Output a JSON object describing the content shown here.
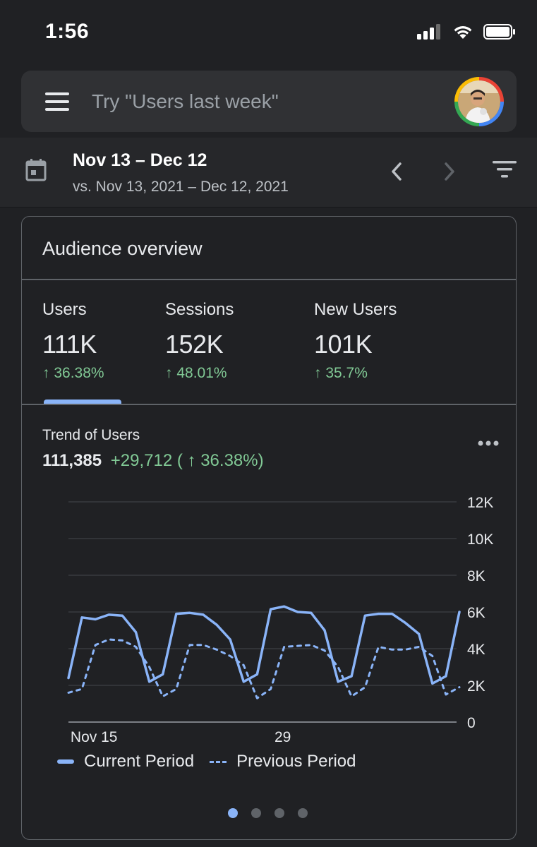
{
  "status_bar": {
    "time": "1:56",
    "icons": [
      "signal-icon",
      "wifi-icon",
      "battery-icon"
    ]
  },
  "search": {
    "placeholder": "Try \"Users last week\"",
    "value": ""
  },
  "date_range": {
    "main": "Nov 13 – Dec 12",
    "compare": "vs. Nov 13, 2021 – Dec 12, 2021"
  },
  "card": {
    "title": "Audience overview",
    "metrics": [
      {
        "label": "Users",
        "value": "111K",
        "change": "↑ 36.38%",
        "selected": true
      },
      {
        "label": "Sessions",
        "value": "152K",
        "change": "↑ 48.01%",
        "selected": false
      },
      {
        "label": "New Users",
        "value": "101K",
        "change": "↑ 35.7%",
        "selected": false
      }
    ],
    "trend": {
      "title": "Trend of Users",
      "value": "111,385",
      "change": "+29,712 ( ↑ 36.38%)"
    },
    "legend": {
      "current": "Current Period",
      "previous": "Previous Period"
    },
    "pager": {
      "count": 4,
      "active": 0
    }
  },
  "colors": {
    "accent": "#8ab4f8",
    "positive": "#81c995",
    "background": "#202124"
  },
  "chart_data": {
    "type": "line",
    "x_tick_labels": [
      "Nov 15",
      "29"
    ],
    "x_tick_day_index": [
      2,
      16
    ],
    "y_ticks": [
      "0",
      "2K",
      "4K",
      "6K",
      "8K",
      "10K",
      "12K"
    ],
    "ylim": [
      0,
      12000
    ],
    "grid": true,
    "legend_position": "bottom-left",
    "series": [
      {
        "name": "Current Period",
        "style": "solid",
        "values": [
          2400,
          5700,
          5600,
          5850,
          5800,
          4900,
          2200,
          2600,
          5900,
          5950,
          5850,
          5300,
          4500,
          2200,
          2600,
          6150,
          6300,
          6000,
          5950,
          5000,
          2200,
          2500,
          5800,
          5900,
          5900,
          5400,
          4800,
          2100,
          2500,
          6000
        ]
      },
      {
        "name": "Previous Period",
        "style": "dashed",
        "values": [
          1600,
          1800,
          4200,
          4500,
          4450,
          4100,
          3000,
          1400,
          1800,
          4200,
          4200,
          3950,
          3600,
          3100,
          1300,
          1800,
          4100,
          4150,
          4200,
          3900,
          3000,
          1400,
          1900,
          4100,
          3950,
          3950,
          4100,
          3600,
          1500,
          1900
        ]
      }
    ]
  }
}
